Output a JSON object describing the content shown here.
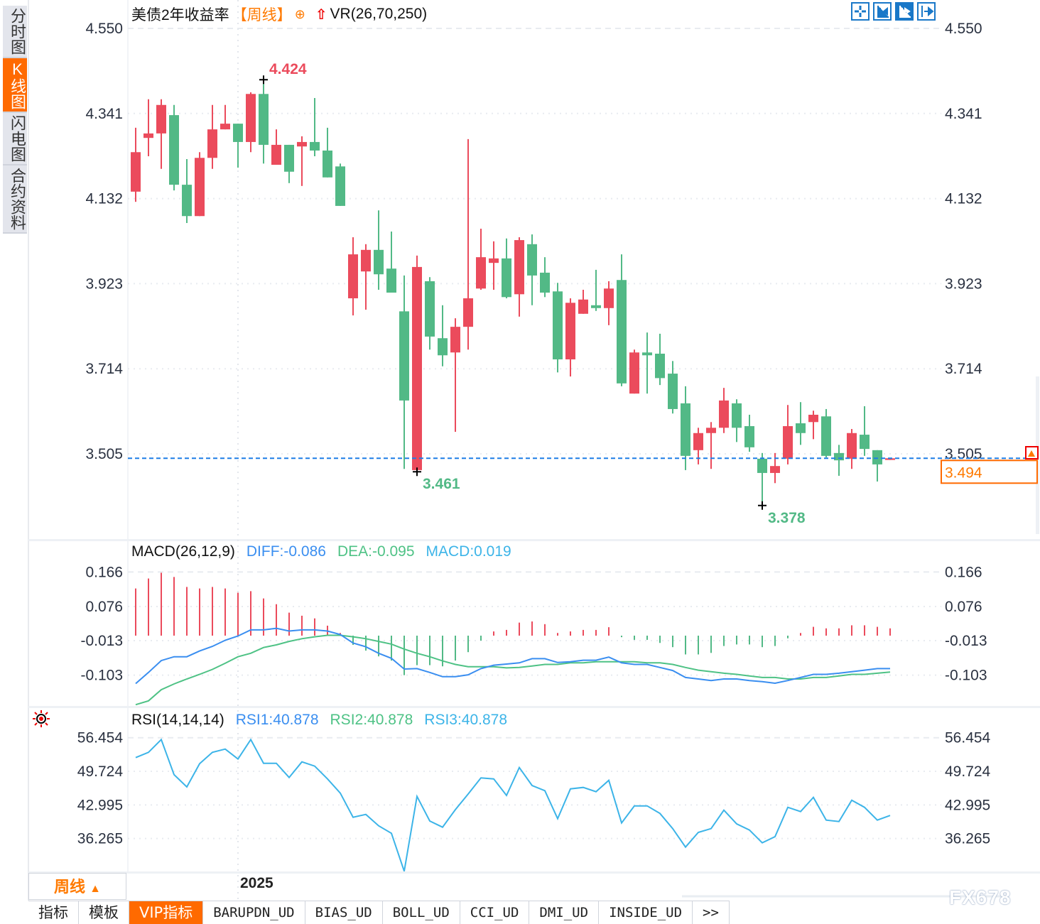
{
  "sidebar": {
    "tabs": [
      {
        "label": "分时图",
        "active": false
      },
      {
        "label": "K线图",
        "active": true
      },
      {
        "label": "闪电图",
        "active": false
      },
      {
        "label": "合约资料",
        "active": false
      }
    ]
  },
  "header": {
    "title": "美债2年收益率",
    "period": "【周线】",
    "indicator": "VR(26,70,250)",
    "icons": [
      "crosshair-icon",
      "scroll-left-icon",
      "scroll-right-icon",
      "goto-end-icon"
    ]
  },
  "colors": {
    "up": "#eb4b5c",
    "down": "#52b986",
    "last_price_line": "#1e7ee6",
    "accent": "#ff6a00",
    "diff": "#3a8ef0",
    "dea": "#4ec285",
    "rsi": "#3cb4e8"
  },
  "chart_data": [
    {
      "type": "candlestick",
      "candle_fields": [
        "open",
        "high",
        "low",
        "close"
      ],
      "yticks": [
        "4.550",
        "4.341",
        "4.132",
        "3.923",
        "3.714",
        "3.505"
      ],
      "ylim": [
        3.3,
        4.55
      ],
      "x_tick_label": "2025",
      "last_price": "3.494",
      "annotations": {
        "max": "4.424",
        "min_a": "3.461",
        "min_b": "3.378"
      },
      "candles": [
        [
          4.149,
          4.306,
          4.124,
          4.246
        ],
        [
          4.281,
          4.376,
          4.236,
          4.292
        ],
        [
          4.292,
          4.376,
          4.205,
          4.362
        ],
        [
          4.337,
          4.362,
          4.152,
          4.166
        ],
        [
          4.166,
          4.229,
          4.072,
          4.089
        ],
        [
          4.089,
          4.246,
          4.089,
          4.232
        ],
        [
          4.232,
          4.362,
          4.205,
          4.302
        ],
        [
          4.302,
          4.362,
          4.302,
          4.316
        ],
        [
          4.316,
          4.316,
          4.208,
          4.271
        ],
        [
          4.271,
          4.393,
          4.246,
          4.389
        ],
        [
          4.389,
          4.424,
          4.218,
          4.264
        ],
        [
          4.215,
          4.302,
          4.215,
          4.264
        ],
        [
          4.264,
          4.264,
          4.17,
          4.198
        ],
        [
          4.26,
          4.285,
          4.163,
          4.271
        ],
        [
          4.271,
          4.379,
          4.236,
          4.25
        ],
        [
          4.25,
          4.306,
          4.184,
          4.184
        ],
        [
          4.211,
          4.218,
          4.114,
          4.114
        ],
        [
          3.887,
          4.037,
          3.845,
          3.995
        ],
        [
          3.953,
          4.02,
          3.859,
          4.006
        ],
        [
          4.006,
          4.103,
          3.908,
          3.946
        ],
        [
          3.96,
          4.051,
          3.901,
          3.901
        ],
        [
          3.855,
          3.943,
          3.468,
          3.636
        ],
        [
          3.465,
          3.992,
          3.461,
          3.964
        ],
        [
          3.929,
          3.939,
          3.761,
          3.793
        ],
        [
          3.789,
          3.87,
          3.72,
          3.747
        ],
        [
          3.754,
          3.838,
          3.559,
          3.817
        ],
        [
          3.817,
          4.278,
          3.761,
          3.887
        ],
        [
          3.911,
          4.058,
          3.908,
          3.988
        ],
        [
          3.974,
          4.027,
          3.908,
          3.985
        ],
        [
          3.985,
          4.034,
          3.887,
          3.89
        ],
        [
          3.897,
          4.037,
          3.842,
          4.03
        ],
        [
          4.02,
          4.044,
          3.87,
          3.943
        ],
        [
          3.95,
          3.988,
          3.89,
          3.901
        ],
        [
          3.904,
          3.925,
          3.705,
          3.737
        ],
        [
          3.737,
          3.887,
          3.695,
          3.876
        ],
        [
          3.849,
          3.908,
          3.849,
          3.884
        ],
        [
          3.87,
          3.957,
          3.856,
          3.863
        ],
        [
          3.863,
          3.929,
          3.821,
          3.911
        ],
        [
          3.932,
          3.995,
          3.671,
          3.678
        ],
        [
          3.653,
          3.761,
          3.653,
          3.754
        ],
        [
          3.754,
          3.803,
          3.653,
          3.747
        ],
        [
          3.751,
          3.8,
          3.674,
          3.691
        ],
        [
          3.702,
          3.733,
          3.604,
          3.615
        ],
        [
          3.629,
          3.671,
          3.465,
          3.5
        ],
        [
          3.514,
          3.569,
          3.479,
          3.556
        ],
        [
          3.556,
          3.583,
          3.468,
          3.569
        ],
        [
          3.569,
          3.667,
          3.556,
          3.636
        ],
        [
          3.629,
          3.639,
          3.534,
          3.569
        ],
        [
          3.573,
          3.601,
          3.51,
          3.521
        ],
        [
          3.493,
          3.507,
          3.378,
          3.458
        ],
        [
          3.458,
          3.507,
          3.433,
          3.475
        ],
        [
          3.493,
          3.625,
          3.479,
          3.573
        ],
        [
          3.58,
          3.632,
          3.527,
          3.556
        ],
        [
          3.583,
          3.611,
          3.541,
          3.601
        ],
        [
          3.597,
          3.615,
          3.496,
          3.5
        ],
        [
          3.507,
          3.527,
          3.451,
          3.489
        ],
        [
          3.493,
          3.566,
          3.468,
          3.556
        ],
        [
          3.552,
          3.622,
          3.5,
          3.517
        ],
        [
          3.514,
          3.514,
          3.437,
          3.479
        ],
        [
          3.49,
          3.494,
          3.49,
          3.494
        ]
      ]
    },
    {
      "type": "macd",
      "title": "MACD(26,12,9)",
      "legend": {
        "diff": "DIFF:-0.086",
        "dea": "DEA:-0.095",
        "macd": "MACD:0.019"
      },
      "yticks": [
        "0.166",
        "0.076",
        "-0.013",
        "-0.103"
      ],
      "diff": [
        -0.125,
        -0.096,
        -0.065,
        -0.055,
        -0.055,
        -0.04,
        -0.028,
        -0.012,
        -0.001,
        0.015,
        0.015,
        0.019,
        0.012,
        0.015,
        0.015,
        0.012,
        0.003,
        -0.019,
        -0.029,
        -0.046,
        -0.059,
        -0.087,
        -0.086,
        -0.096,
        -0.107,
        -0.107,
        -0.102,
        -0.086,
        -0.077,
        -0.074,
        -0.071,
        -0.06,
        -0.06,
        -0.07,
        -0.068,
        -0.064,
        -0.064,
        -0.056,
        -0.071,
        -0.075,
        -0.075,
        -0.083,
        -0.091,
        -0.109,
        -0.113,
        -0.117,
        -0.113,
        -0.113,
        -0.117,
        -0.12,
        -0.124,
        -0.117,
        -0.109,
        -0.101,
        -0.101,
        -0.098,
        -0.094,
        -0.09,
        -0.086,
        -0.086
      ],
      "dea": [
        -0.18,
        -0.17,
        -0.141,
        -0.126,
        -0.113,
        -0.101,
        -0.088,
        -0.072,
        -0.055,
        -0.046,
        -0.031,
        -0.024,
        -0.015,
        -0.008,
        -0.003,
        0.001,
        0.001,
        -0.003,
        -0.008,
        -0.015,
        -0.022,
        -0.035,
        -0.046,
        -0.055,
        -0.066,
        -0.075,
        -0.081,
        -0.081,
        -0.081,
        -0.084,
        -0.083,
        -0.079,
        -0.075,
        -0.075,
        -0.071,
        -0.071,
        -0.068,
        -0.068,
        -0.068,
        -0.068,
        -0.071,
        -0.071,
        -0.075,
        -0.083,
        -0.09,
        -0.094,
        -0.098,
        -0.101,
        -0.105,
        -0.109,
        -0.109,
        -0.113,
        -0.113,
        -0.109,
        -0.109,
        -0.105,
        -0.101,
        -0.101,
        -0.098,
        -0.095
      ],
      "macd": [
        0.123,
        0.149,
        0.164,
        0.153,
        0.127,
        0.123,
        0.127,
        0.123,
        0.112,
        0.116,
        0.097,
        0.082,
        0.06,
        0.052,
        0.045,
        0.026,
        0.007,
        -0.024,
        -0.039,
        -0.054,
        -0.065,
        -0.103,
        -0.077,
        -0.077,
        -0.08,
        -0.065,
        -0.043,
        -0.013,
        0.011,
        0.015,
        0.034,
        0.037,
        0.03,
        0.007,
        0.011,
        0.015,
        0.015,
        0.022,
        -0.004,
        -0.011,
        -0.011,
        -0.019,
        -0.03,
        -0.049,
        -0.049,
        -0.045,
        -0.027,
        -0.023,
        -0.023,
        -0.03,
        -0.027,
        -0.007,
        0.007,
        0.023,
        0.019,
        0.019,
        0.027,
        0.027,
        0.023,
        0.019
      ]
    },
    {
      "type": "line",
      "title": "RSI(14,14,14)",
      "legend": {
        "rsi1": "RSI1:40.878",
        "rsi2": "RSI2:40.878",
        "rsi3": "RSI3:40.878"
      },
      "yticks": [
        "56.454",
        "49.724",
        "42.995",
        "36.265"
      ],
      "rsi": [
        52.47,
        53.52,
        56.08,
        49.06,
        46.6,
        51.25,
        53.52,
        54.18,
        52.19,
        56.08,
        51.33,
        51.33,
        48.49,
        51.62,
        50.77,
        48.21,
        45.36,
        40.53,
        41.1,
        38.82,
        37.31,
        29.72,
        44.71,
        39.77,
        38.54,
        42.05,
        45.18,
        48.41,
        48.21,
        44.89,
        50.48,
        46.88,
        45.85,
        40.24,
        46.22,
        46.5,
        45.65,
        47.92,
        39.39,
        42.8,
        42.8,
        41.29,
        38.25,
        34.55,
        37.5,
        38.25,
        41.95,
        39.2,
        37.97,
        35.41,
        36.65,
        42.52,
        41.66,
        44.51,
        39.96,
        39.68,
        43.94,
        42.52,
        39.96,
        40.878
      ]
    }
  ],
  "footer": {
    "period_label": "周线",
    "period_arrow": "▲",
    "tabs": [
      "指标",
      "模板",
      "VIP指标",
      "BARUPDN_UD",
      "BIAS_UD",
      "BOLL_UD",
      "CCI_UD",
      "DMI_UD",
      "INSIDE_UD",
      ">>"
    ],
    "active_tab": "VIP指标",
    "watermark": "FX678"
  }
}
